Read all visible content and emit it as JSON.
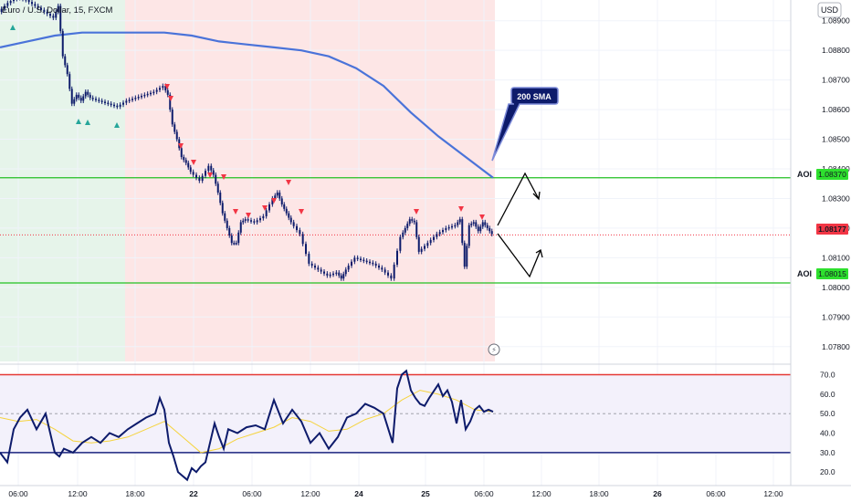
{
  "header": {
    "symbol_title": "Euro / U.S. Dollar, 15, FXCM",
    "currency": "USD"
  },
  "colors": {
    "bull_zone": "#e6f4ea",
    "bear_zone": "#fde6e6",
    "candle": "#0d1b6b",
    "sma": "#4a73d9",
    "aoi_line": "#22c022",
    "aoi_tag": "#2ee02e",
    "price_tag": "#f23645",
    "rsi_line": "#0d1b6b",
    "rsi_ma": "#f5d33c",
    "rsi_upper": "#e53935",
    "rsi_lower": "#1a237e",
    "buy_arrow": "#26a69a",
    "sell_arrow": "#f23645"
  },
  "annotations": {
    "sma_label": "200 SMA",
    "aoi_upper_label": "AOI",
    "aoi_lower_label": "AOI",
    "aoi_upper_price": "1.08370",
    "aoi_lower_price": "1.08015",
    "last_price": "1.08177"
  },
  "chart_data": [
    {
      "type": "line",
      "title": "Euro / U.S. Dollar, 15, FXCM",
      "y_axis_ticks": [
        "1.08900",
        "1.08800",
        "1.08700",
        "1.08600",
        "1.08500",
        "1.08400",
        "1.08300",
        "1.08200",
        "1.08100",
        "1.08000",
        "1.07900",
        "1.07800"
      ],
      "x_axis_ticks": [
        "06:00",
        "12:00",
        "18:00",
        "22",
        "06:00",
        "12:00",
        "24",
        "25",
        "06:00",
        "12:00",
        "18:00",
        "26",
        "06:00",
        "12:00"
      ],
      "ylim": [
        1.0775,
        1.0897
      ],
      "series": [
        {
          "x": [
            0,
            10,
            20,
            30,
            40,
            50,
            60,
            65,
            70,
            75,
            80,
            85,
            90,
            95,
            100,
            110,
            120,
            130,
            140,
            150,
            160,
            170,
            180,
            185,
            190,
            195,
            200,
            205,
            210,
            220,
            230,
            235,
            240,
            245,
            250,
            255,
            260,
            265,
            270,
            280,
            290,
            300,
            305,
            310,
            315,
            320,
            330,
            340,
            350,
            360,
            370,
            375,
            380,
            390,
            400,
            410,
            420,
            430,
            440,
            445,
            450,
            455,
            460,
            470,
            480,
            490,
            500,
            505,
            510,
            515,
            520,
            525,
            530,
            535,
            540
          ],
          "values": [
            1.0893,
            1.0896,
            1.0898,
            1.0897,
            1.0895,
            1.0893,
            1.0891,
            1.0895,
            1.0878,
            1.0872,
            1.0862,
            1.0865,
            1.0863,
            1.0866,
            1.0864,
            1.0863,
            1.0862,
            1.0861,
            1.0863,
            1.0864,
            1.0865,
            1.0866,
            1.0868,
            1.0865,
            1.0855,
            1.085,
            1.0844,
            1.0842,
            1.0839,
            1.0836,
            1.0841,
            1.0838,
            1.0832,
            1.0825,
            1.082,
            1.0815,
            1.0815,
            1.0822,
            1.0823,
            1.0822,
            1.0824,
            1.083,
            1.0832,
            1.0828,
            1.0825,
            1.0822,
            1.0818,
            1.0808,
            1.0806,
            1.0804,
            1.0805,
            1.0803,
            1.0806,
            1.081,
            1.0809,
            1.0808,
            1.0806,
            1.0803,
            1.0817,
            1.082,
            1.0823,
            1.0822,
            1.0812,
            1.0815,
            1.0818,
            1.082,
            1.0821,
            1.0823,
            1.0807,
            1.0821,
            1.0822,
            1.0819,
            1.0822,
            1.082,
            1.0818
          ]
        },
        {
          "name": "200 SMA",
          "x": [
            0,
            30,
            60,
            90,
            120,
            150,
            180,
            210,
            240,
            270,
            300,
            330,
            360,
            390,
            420,
            450,
            480,
            510,
            540
          ],
          "values": [
            1.0881,
            1.0883,
            1.0885,
            1.0886,
            1.0886,
            1.0886,
            1.0886,
            1.0885,
            1.0883,
            1.0882,
            1.0881,
            1.088,
            1.0878,
            1.0874,
            1.0868,
            1.0859,
            1.0851,
            1.0844,
            1.0837
          ]
        }
      ]
    },
    {
      "type": "line",
      "y_axis_ticks": [
        "70.0",
        "60.0",
        "50.0",
        "40.0",
        "30.0",
        "20.0"
      ],
      "ylim": [
        14,
        74
      ],
      "levels": [
        70,
        30,
        50
      ],
      "series": [
        {
          "x": [
            0,
            8,
            15,
            22,
            30,
            40,
            50,
            60,
            65,
            70,
            80,
            90,
            100,
            110,
            120,
            130,
            140,
            150,
            160,
            170,
            175,
            180,
            185,
            190,
            195,
            200,
            205,
            210,
            215,
            220,
            225,
            230,
            235,
            240,
            245,
            250,
            260,
            270,
            280,
            290,
            300,
            310,
            320,
            330,
            340,
            350,
            360,
            370,
            380,
            390,
            400,
            410,
            420,
            430,
            435,
            440,
            445,
            450,
            455,
            460,
            465,
            470,
            480,
            485,
            490,
            495,
            500,
            505,
            510,
            515,
            520,
            525,
            530,
            535,
            540
          ],
          "values": [
            30,
            25,
            42,
            48,
            52,
            42,
            50,
            30,
            28,
            32,
            30,
            35,
            38,
            35,
            40,
            38,
            42,
            45,
            48,
            50,
            58,
            52,
            35,
            28,
            20,
            18,
            16,
            22,
            20,
            23,
            25,
            35,
            45,
            38,
            32,
            42,
            40,
            43,
            44,
            42,
            57,
            45,
            52,
            46,
            35,
            40,
            32,
            38,
            48,
            50,
            55,
            53,
            50,
            35,
            63,
            70,
            72,
            62,
            58,
            55,
            54,
            58,
            65,
            59,
            62,
            56,
            45,
            57,
            42,
            46,
            52,
            54,
            51,
            52,
            51
          ]
        },
        {
          "x": [
            0,
            20,
            40,
            60,
            80,
            100,
            120,
            140,
            160,
            180,
            200,
            220,
            240,
            260,
            280,
            300,
            320,
            340,
            360,
            380,
            400,
            420,
            440,
            460,
            480,
            500,
            520,
            540
          ],
          "values": [
            48,
            46,
            47,
            42,
            36,
            35,
            36,
            38,
            42,
            46,
            38,
            30,
            32,
            37,
            40,
            43,
            48,
            46,
            41,
            42,
            47,
            50,
            57,
            62,
            60,
            57,
            52,
            51
          ]
        }
      ]
    }
  ]
}
